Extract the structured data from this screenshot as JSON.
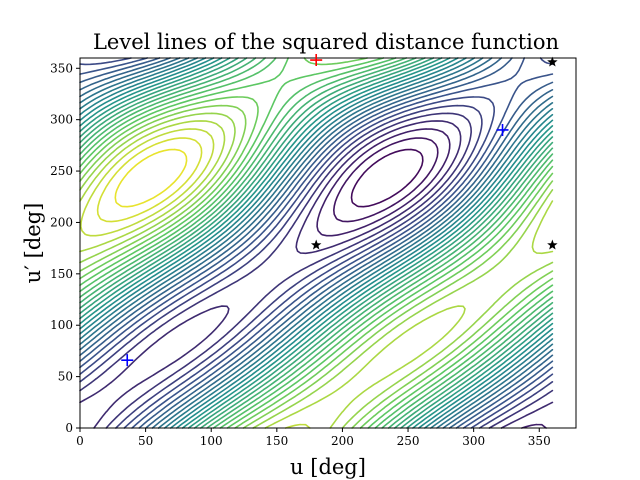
{
  "chart_data": {
    "type": "contour",
    "title": "Level lines of the squared distance function",
    "xlabel": "u [deg]",
    "ylabel": "u′ [deg]",
    "xlim": [
      0,
      378
    ],
    "ylim": [
      0,
      360
    ],
    "xticks": [
      0,
      50,
      100,
      150,
      200,
      250,
      300,
      350
    ],
    "yticks": [
      0,
      50,
      100,
      150,
      200,
      250,
      300,
      350
    ],
    "grid": false,
    "colormap": [
      "#440154",
      "#3b528b",
      "#21918c",
      "#5ec962",
      "#fde725"
    ],
    "markers": [
      {
        "kind": "plus",
        "color": "#0000ff",
        "x": 36,
        "y": 66
      },
      {
        "kind": "plus",
        "color": "#0000ff",
        "x": 322,
        "y": 290
      },
      {
        "kind": "plus",
        "color": "#ff0000",
        "x": 180,
        "y": 358
      },
      {
        "kind": "star",
        "color": "#000000",
        "x": 180,
        "y": 178
      },
      {
        "kind": "star",
        "color": "#000000",
        "x": 360,
        "y": 178
      },
      {
        "kind": "star",
        "color": "#000000",
        "x": 360,
        "y": 356
      }
    ]
  }
}
